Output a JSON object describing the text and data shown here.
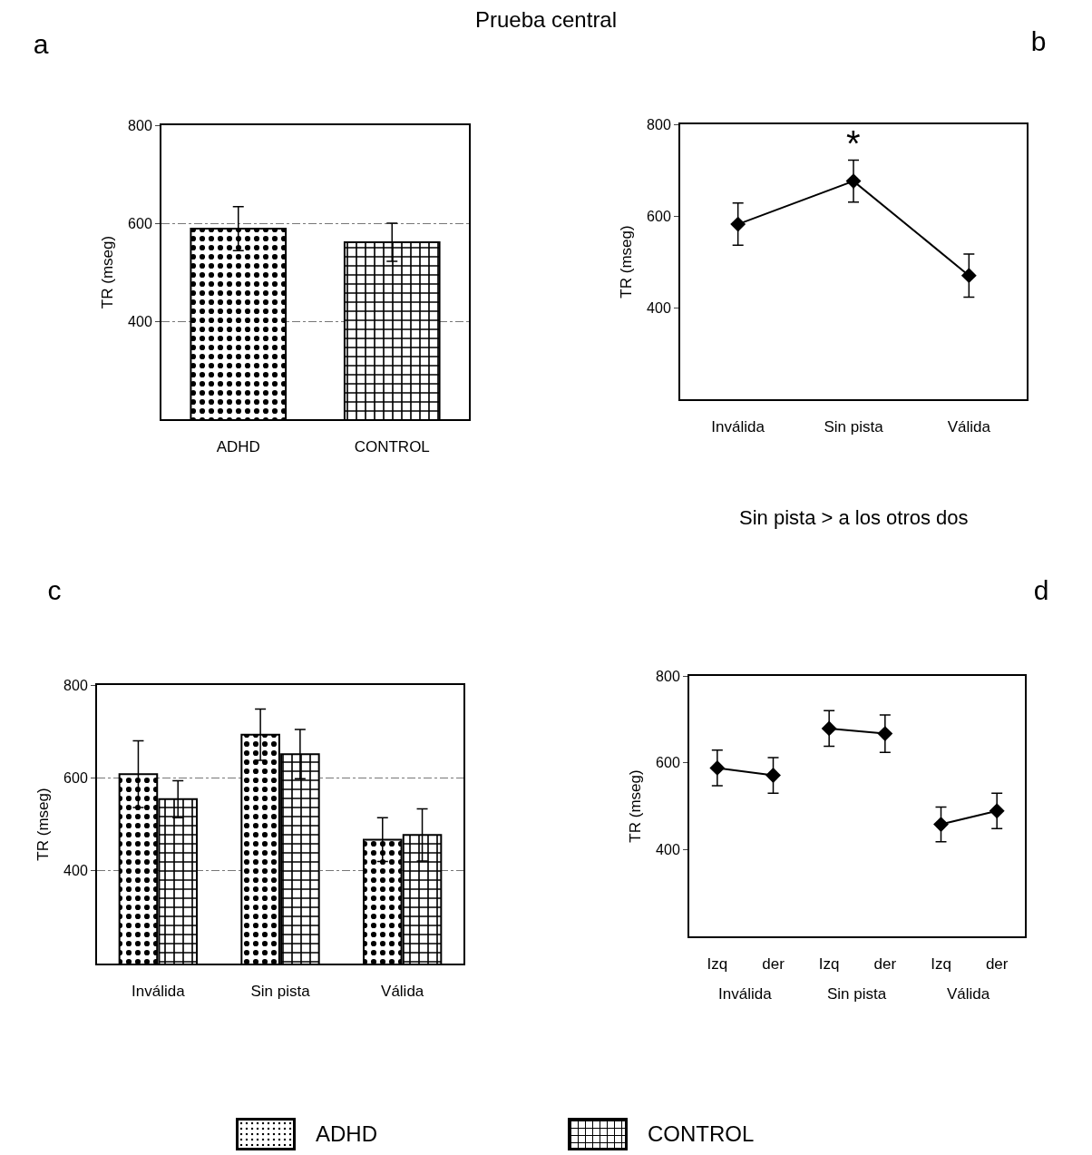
{
  "chart_data": [
    {
      "type": "bar",
      "title": "a",
      "subtitle": "Prueba central",
      "ylabel": "TR (mseg)",
      "categories": [
        "ADHD",
        "CONTROL"
      ],
      "values": [
        589,
        561
      ],
      "errors": [
        45,
        39
      ],
      "colors": [
        "#000000",
        "#000000"
      ],
      "ylim": [
        200,
        800
      ],
      "yticks": [
        400,
        600,
        800
      ],
      "grid": "y"
    },
    {
      "type": "line",
      "title": "b",
      "ylabel": "TR (mseg)",
      "categories": [
        "Inválida",
        "Sin pista",
        "Válida"
      ],
      "values": [
        582,
        676,
        470
      ],
      "errors": [
        46,
        46,
        47
      ],
      "color": "#000000",
      "marker": "diamond",
      "line_style": "solid",
      "ylim": [
        200,
        800
      ],
      "yticks": [
        400,
        600,
        800
      ],
      "grid": false,
      "annotations": [
        "*",
        "Sin pista > a los otros dos"
      ]
    },
    {
      "type": "bar",
      "title": "c",
      "ylabel": "TR (mseg)",
      "categories": [
        "Inválida",
        "Sin pista",
        "Válida"
      ],
      "series": [
        {
          "name": "ADHD",
          "color": "#000000",
          "values": [
            608,
            693,
            467
          ],
          "errors": [
            72,
            55,
            47
          ]
        },
        {
          "name": "CONTROL",
          "color": "#000000",
          "values": [
            554,
            651,
            477
          ],
          "errors": [
            40,
            53,
            56
          ]
        }
      ],
      "ylim": [
        200,
        800
      ],
      "yticks": [
        400,
        600,
        800
      ],
      "grid": "y",
      "legend": "bottom"
    },
    {
      "type": "line",
      "title": "d",
      "ylabel": "TR (mseg)",
      "categories": [
        "Izq",
        "der",
        "Izq",
        "der",
        "Izq",
        "der"
      ],
      "series": [
        {
          "color": "#000000",
          "values": [
            588,
            571,
            null,
            null,
            null,
            null
          ],
          "errors": [
            41,
            41,
            null,
            null,
            null,
            null
          ]
        },
        {
          "color": "#000000",
          "values": [
            null,
            null,
            679,
            667,
            null,
            null
          ],
          "errors": [
            null,
            null,
            41,
            43,
            null,
            null
          ]
        },
        {
          "color": "#000000",
          "values": [
            null,
            null,
            null,
            null,
            458,
            489
          ],
          "errors": [
            null,
            null,
            null,
            null,
            40,
            41
          ]
        }
      ],
      "marker": "diamond",
      "line_style": "solid",
      "ylim": [
        200,
        800
      ],
      "yticks": [
        400,
        600,
        800
      ],
      "grid": false,
      "annotations": [
        "Inválida",
        "Sin pista",
        "Válida"
      ]
    }
  ]
}
